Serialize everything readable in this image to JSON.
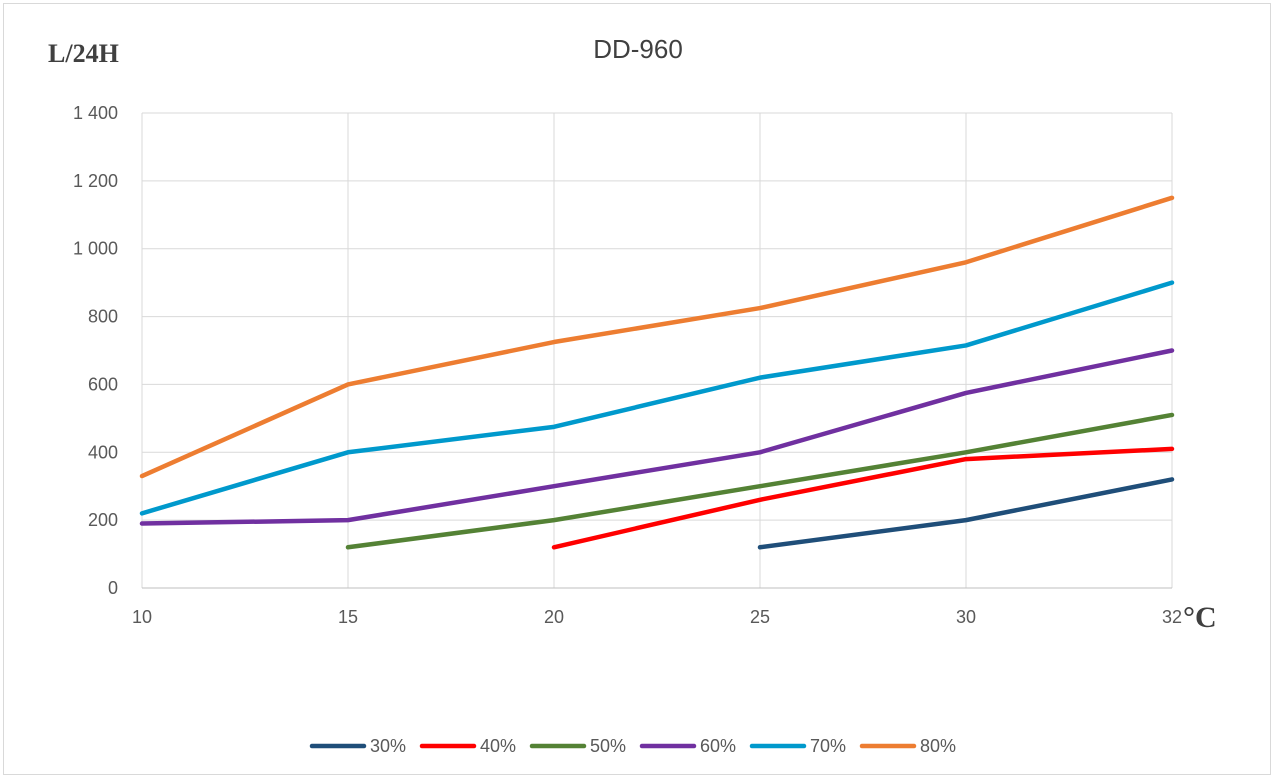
{
  "chart_data": {
    "type": "line",
    "title": "DD-960",
    "ylabel": "L/24H",
    "xlabel": "°C",
    "x": [
      10,
      15,
      20,
      25,
      30,
      32
    ],
    "x_tick_labels": [
      "10",
      "15",
      "20",
      "25",
      "30",
      "32"
    ],
    "ylim": [
      0,
      1400
    ],
    "y_ticks": [
      0,
      200,
      400,
      600,
      800,
      1000,
      1200,
      1400
    ],
    "y_tick_labels": [
      "0",
      "200",
      "400",
      "600",
      "800",
      "1 000",
      "1 200",
      "1 400"
    ],
    "grid": true,
    "legend_position": "bottom",
    "series": [
      {
        "name": "30%",
        "color": "#1f4e79",
        "values": [
          null,
          null,
          null,
          120,
          200,
          320
        ]
      },
      {
        "name": "40%",
        "color": "#ff0000",
        "values": [
          null,
          null,
          120,
          260,
          380,
          410
        ]
      },
      {
        "name": "50%",
        "color": "#548235",
        "values": [
          null,
          120,
          200,
          300,
          400,
          510
        ]
      },
      {
        "name": "60%",
        "color": "#7030a0",
        "values": [
          190,
          200,
          300,
          400,
          575,
          700
        ]
      },
      {
        "name": "70%",
        "color": "#0099cc",
        "values": [
          220,
          400,
          475,
          620,
          715,
          900
        ]
      },
      {
        "name": "80%",
        "color": "#ed7d31",
        "values": [
          330,
          600,
          725,
          825,
          960,
          1150
        ]
      }
    ]
  }
}
